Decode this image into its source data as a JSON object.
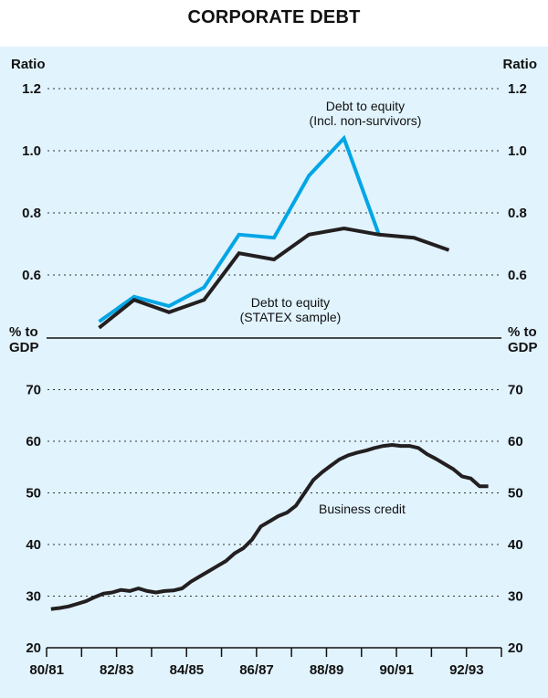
{
  "title": "CORPORATE DEBT",
  "chart_data": [
    {
      "type": "line",
      "panel": "top",
      "title": "CORPORATE DEBT",
      "ylabel_left": "Ratio",
      "ylabel_right": "Ratio",
      "ylim": [
        0.4,
        1.2
      ],
      "yticks": [
        0.6,
        0.8,
        1.0,
        1.2
      ],
      "ytick_labels": [
        "0.6",
        "0.8",
        "1.0",
        "1.2"
      ],
      "grid": true,
      "x": [
        "81/82",
        "82/83",
        "83/84",
        "84/85",
        "85/86",
        "86/87",
        "87/88",
        "88/89",
        "89/90",
        "90/91",
        "91/92"
      ],
      "series": [
        {
          "name": "Debt to equity (STATEX sample)",
          "label_lines": [
            "Debt to equity",
            "(STATEX sample)"
          ],
          "color": "#231f20",
          "values": [
            0.43,
            0.52,
            0.48,
            0.52,
            0.67,
            0.65,
            0.73,
            0.75,
            0.73,
            0.72,
            0.68
          ]
        },
        {
          "name": "Debt to equity (Incl. non-survivors)",
          "label_lines": [
            "Debt to equity",
            "(Incl. non-survivors)"
          ],
          "color": "#00a6e6",
          "values": [
            0.45,
            0.53,
            0.5,
            0.56,
            0.73,
            0.72,
            0.92,
            1.04,
            0.73,
            null,
            null
          ]
        }
      ]
    },
    {
      "type": "line",
      "panel": "bottom",
      "ylabel_left": [
        "% to",
        "GDP"
      ],
      "ylabel_right": [
        "% to",
        "GDP"
      ],
      "ylim": [
        20,
        75
      ],
      "yticks": [
        20,
        30,
        40,
        50,
        60,
        70
      ],
      "ytick_labels": [
        "20",
        "30",
        "40",
        "50",
        "60",
        "70"
      ],
      "grid": true,
      "xlim_years": [
        1980.5,
        1993.5
      ],
      "xtick_labels": [
        "80/81",
        "82/83",
        "84/85",
        "86/87",
        "88/89",
        "90/91",
        "92/93"
      ],
      "xtick_label_positions": [
        1981.0,
        1983.0,
        1985.0,
        1987.0,
        1989.0,
        1991.0,
        1993.0
      ],
      "x_start": 1980.625,
      "x_step": 0.25,
      "series": [
        {
          "name": "Business credit",
          "label_lines": [
            "Business credit"
          ],
          "color": "#231f20",
          "frequency": "quarterly",
          "values": [
            27.5,
            27.7,
            28.0,
            28.5,
            29.0,
            29.8,
            30.5,
            30.7,
            31.2,
            31.0,
            31.5,
            31.0,
            30.7,
            31.0,
            31.1,
            31.5,
            32.8,
            33.8,
            34.8,
            35.8,
            36.8,
            38.3,
            39.3,
            41.0,
            43.5,
            44.5,
            45.5,
            46.2,
            47.5,
            50.0,
            52.5,
            54.0,
            55.3,
            56.5,
            57.3,
            57.8,
            58.2,
            58.7,
            59.1,
            59.3,
            59.1,
            59.1,
            58.7,
            57.5,
            56.6,
            55.6,
            54.6,
            53.2,
            52.8,
            51.3,
            51.3
          ]
        }
      ]
    }
  ]
}
